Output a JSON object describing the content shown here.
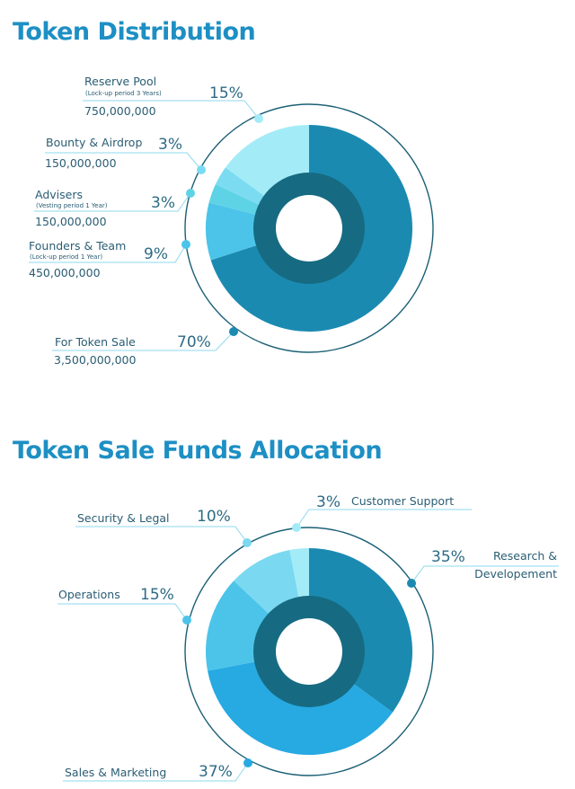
{
  "titles": {
    "distribution": "Token Distribution",
    "allocation": "Token Sale Funds Allocation"
  },
  "chart_data": [
    {
      "type": "pie",
      "title": "Token Distribution",
      "slices": [
        {
          "name": "For Token Sale",
          "percent": 70,
          "percent_label": "70%",
          "amount": "3,500,000,000",
          "note": "",
          "color": "#1b8ab1"
        },
        {
          "name": "Founders & Team",
          "percent": 9,
          "percent_label": "9%",
          "amount": "450,000,000",
          "note": "(Lock-up period 1 Year)",
          "color": "#4cc4ea"
        },
        {
          "name": "Advisers",
          "percent": 3,
          "percent_label": "3%",
          "amount": "150,000,000",
          "note": "(Vesting period 1 Year)",
          "color": "#5fd3e6"
        },
        {
          "name": "Bounty & Airdrop",
          "percent": 3,
          "percent_label": "3%",
          "amount": "150,000,000",
          "note": "",
          "color": "#7bdcf1"
        },
        {
          "name": "Reserve Pool",
          "percent": 15,
          "percent_label": "15%",
          "amount": "750,000,000",
          "note": "(Lock-up period 3 Years)",
          "color": "#a3ecf7"
        }
      ],
      "colors": {
        "inner_ring": "#166b82",
        "outer_ring": "#1a5f75",
        "leader": "#8ed9ec"
      }
    },
    {
      "type": "pie",
      "title": "Token Sale Funds Allocation",
      "slices": [
        {
          "name": "Research & Developement",
          "name_lines": [
            "Research &",
            "Developement"
          ],
          "percent": 35,
          "percent_label": "35%",
          "color": "#1b8ab1"
        },
        {
          "name": "Sales & Marketing",
          "percent": 37,
          "percent_label": "37%",
          "color": "#27a9e2"
        },
        {
          "name": "Operations",
          "percent": 15,
          "percent_label": "15%",
          "color": "#4cc4ea"
        },
        {
          "name": "Security & Legal",
          "percent": 10,
          "percent_label": "10%",
          "color": "#7ad9f0"
        },
        {
          "name": "Customer Support",
          "percent": 3,
          "percent_label": "3%",
          "color": "#a3ecf7"
        }
      ],
      "colors": {
        "inner_ring": "#166b82",
        "outer_ring": "#1a5f75",
        "leader": "#8ed9ec"
      }
    }
  ]
}
